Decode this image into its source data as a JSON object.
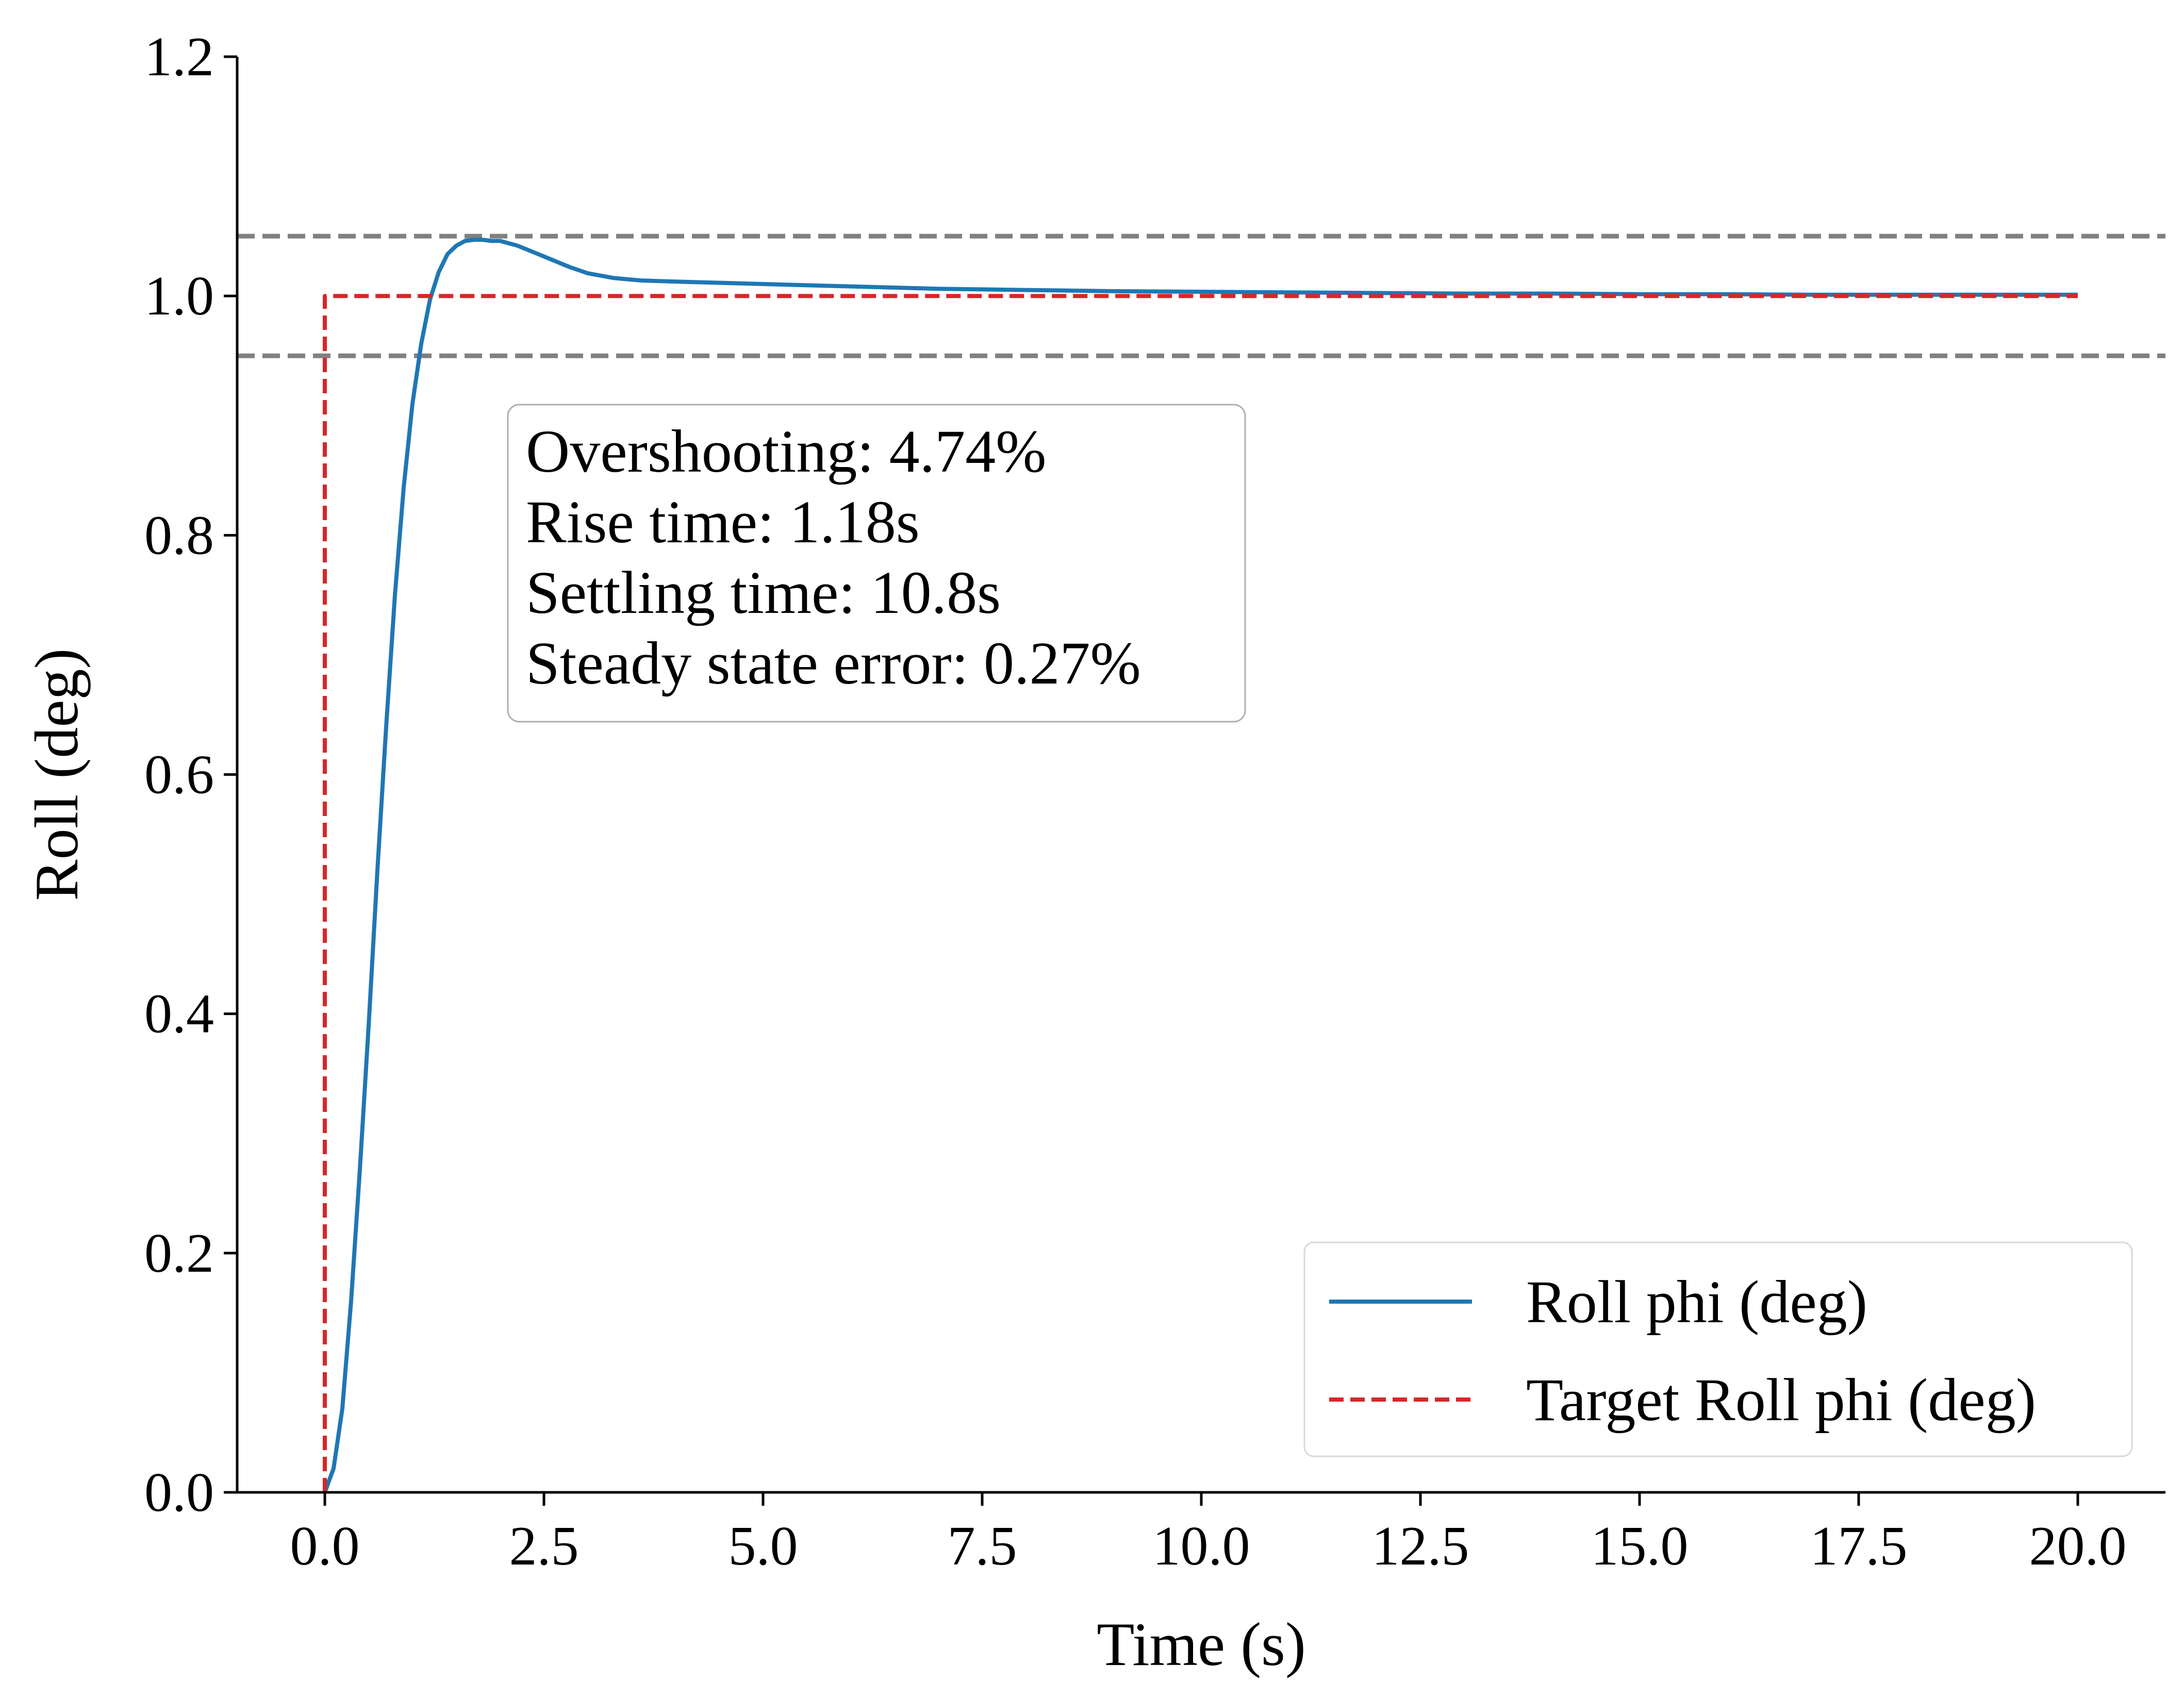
{
  "chart_data": {
    "type": "line",
    "xlabel": "Time (s)",
    "ylabel": "Roll (deg)",
    "xlim": [
      -1.0,
      21.0
    ],
    "ylim": [
      0.0,
      1.2
    ],
    "xticks": [
      0.0,
      2.5,
      5.0,
      7.5,
      10.0,
      12.5,
      15.0,
      17.5,
      20.0
    ],
    "xtick_labels": [
      "0.0",
      "2.5",
      "5.0",
      "7.5",
      "10.0",
      "12.5",
      "15.0",
      "17.5",
      "20.0"
    ],
    "yticks": [
      0.0,
      0.2,
      0.4,
      0.6,
      0.8,
      1.0,
      1.2
    ],
    "ytick_labels": [
      "0.0",
      "0.2",
      "0.4",
      "0.6",
      "0.8",
      "1.0",
      "1.2"
    ],
    "grid": false,
    "legend_position": "lower-right",
    "series": [
      {
        "name": "Roll phi (deg)",
        "style": "solid",
        "color": "#1f77b4",
        "x": [
          0.0,
          0.1,
          0.2,
          0.3,
          0.4,
          0.5,
          0.6,
          0.7,
          0.8,
          0.9,
          1.0,
          1.1,
          1.2,
          1.3,
          1.4,
          1.5,
          1.6,
          1.7,
          1.8,
          1.9,
          2.0,
          2.1,
          2.2,
          2.4,
          2.6,
          2.8,
          3.0,
          3.3,
          3.6,
          4.0,
          4.5,
          5.0,
          6.0,
          7.0,
          8.0,
          9.0,
          10.0,
          11.0,
          12.0,
          13.0,
          14.0,
          15.0,
          16.0,
          17.0,
          18.0,
          19.0,
          20.0
        ],
        "y": [
          0.0,
          0.02,
          0.07,
          0.16,
          0.27,
          0.39,
          0.52,
          0.64,
          0.75,
          0.84,
          0.91,
          0.96,
          0.997,
          1.02,
          1.035,
          1.042,
          1.046,
          1.047,
          1.047,
          1.046,
          1.046,
          1.044,
          1.042,
          1.036,
          1.03,
          1.024,
          1.019,
          1.015,
          1.013,
          1.012,
          1.011,
          1.01,
          1.008,
          1.006,
          1.005,
          1.004,
          1.0035,
          1.003,
          1.0025,
          1.002,
          1.002,
          1.0015,
          1.0015,
          1.001,
          1.001,
          1.001,
          1.001
        ]
      },
      {
        "name": "Target Roll phi (deg)",
        "style": "dashed",
        "color": "#d62728",
        "x": [
          0.0,
          0.0,
          20.0
        ],
        "y": [
          0.0,
          1.0,
          1.0
        ]
      }
    ],
    "reference_lines": [
      {
        "y": 1.05,
        "color": "#808080",
        "style": "dashed"
      },
      {
        "y": 0.95,
        "color": "#808080",
        "style": "dashed"
      }
    ],
    "annotation": {
      "lines": [
        "Overshooting: 4.74%",
        "Rise time: 1.18s",
        "Settling time: 10.8s",
        "Steady state error: 0.27%"
      ]
    }
  }
}
